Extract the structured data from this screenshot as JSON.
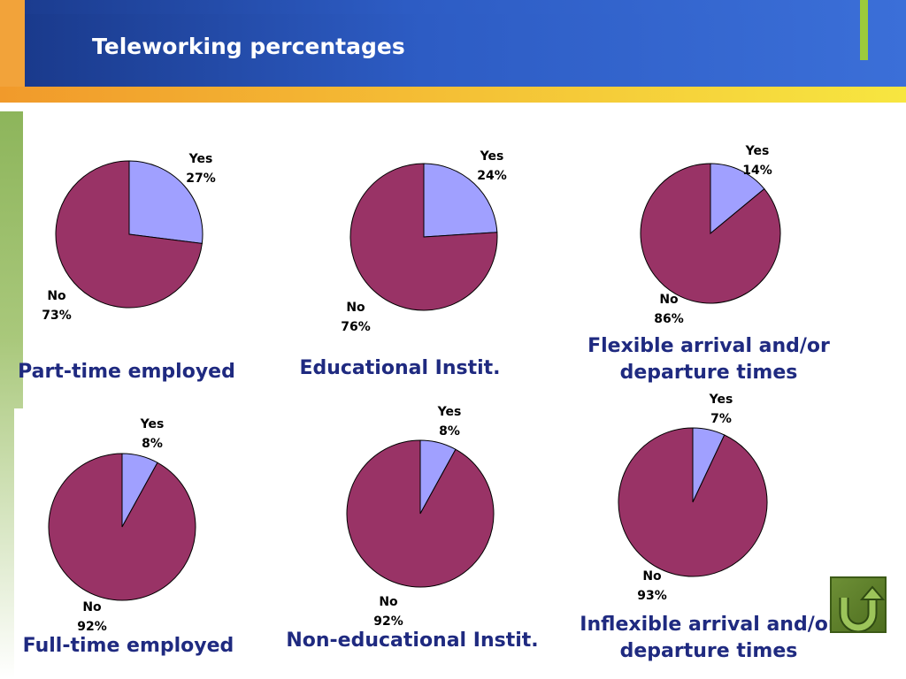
{
  "slide": {
    "title": "Teleworking percentages"
  },
  "colors": {
    "yes": "#a0a0ff",
    "no": "#993366",
    "header_blue": "#2a52b8",
    "caption": "#1f2a80",
    "accent_orange": "#f5a623",
    "accent_green": "#8db55b"
  },
  "icons": {
    "home_button": "u-turn-arrow-icon"
  },
  "chart_data": [
    {
      "type": "pie",
      "title": "Part-time employed",
      "categories": [
        "Yes",
        "No"
      ],
      "values": [
        27,
        73
      ],
      "labels": [
        "27%",
        "73%"
      ]
    },
    {
      "type": "pie",
      "title": "Educational Instit.",
      "categories": [
        "Yes",
        "No"
      ],
      "values": [
        24,
        76
      ],
      "labels": [
        "24%",
        "76%"
      ]
    },
    {
      "type": "pie",
      "title": "Flexible arrival and/or departure times",
      "categories": [
        "Yes",
        "No"
      ],
      "values": [
        14,
        86
      ],
      "labels": [
        "14%",
        "86%"
      ]
    },
    {
      "type": "pie",
      "title": "Full-time employed",
      "categories": [
        "Yes",
        "No"
      ],
      "values": [
        8,
        92
      ],
      "labels": [
        "8%",
        "92%"
      ]
    },
    {
      "type": "pie",
      "title": "Non-educational Instit.",
      "categories": [
        "Yes",
        "No"
      ],
      "values": [
        8,
        92
      ],
      "labels": [
        "8%",
        "92%"
      ]
    },
    {
      "type": "pie",
      "title": "Inflexible arrival and/or departure times",
      "categories": [
        "Yes",
        "No"
      ],
      "values": [
        7,
        93
      ],
      "labels": [
        "7%",
        "93%"
      ]
    }
  ]
}
